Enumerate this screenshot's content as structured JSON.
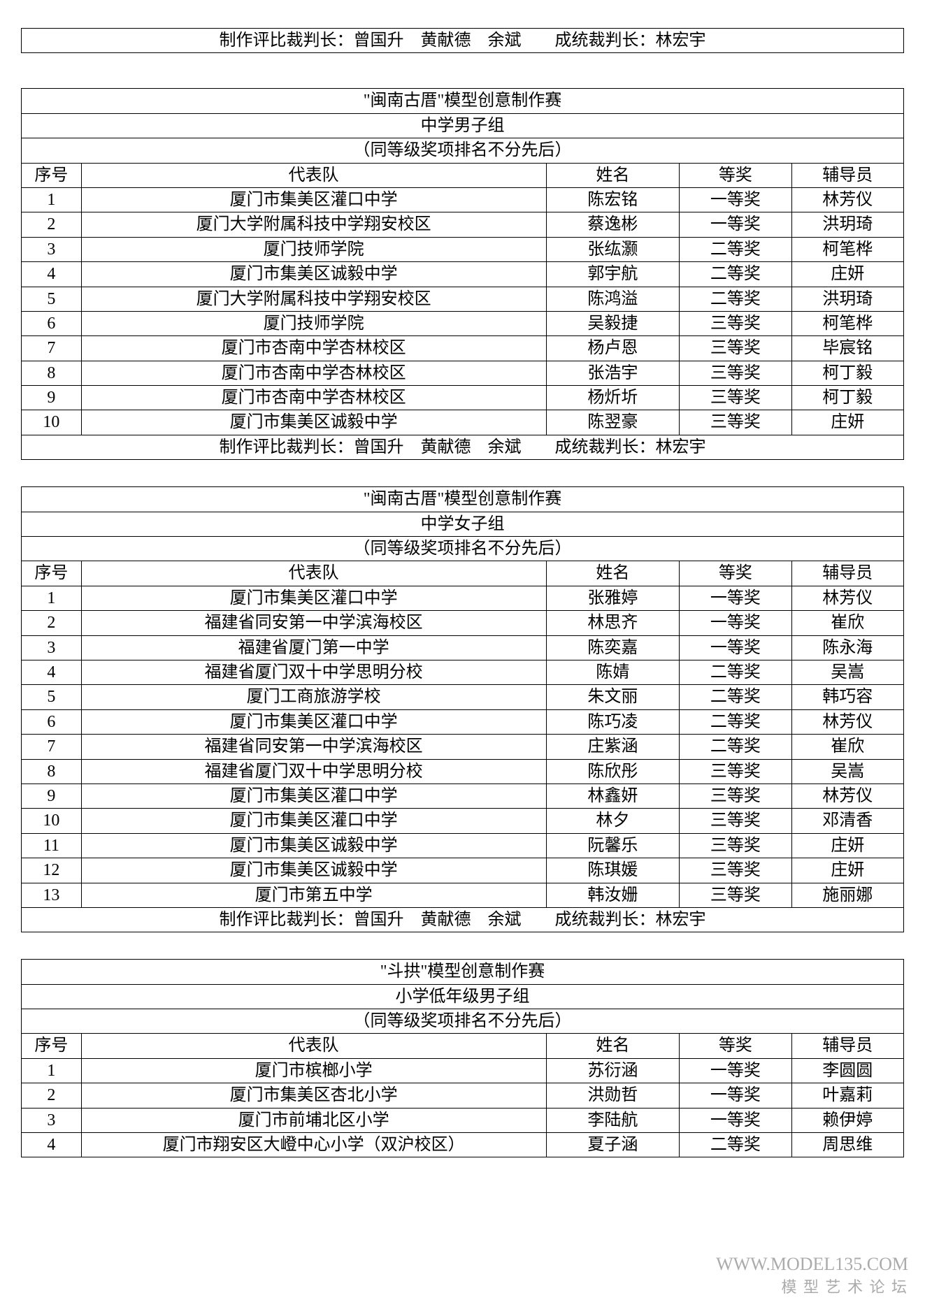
{
  "judges_line": "制作评比裁判长：曾国升 黄献德 余斌  成统裁判长：林宏宇",
  "headers": {
    "seq": "序号",
    "team": "代表队",
    "name": "姓名",
    "award": "等奖",
    "tutor": "辅导员"
  },
  "note": "（同等级奖项排名不分先后）",
  "section1": {
    "title": "\"闽南古厝\"模型创意制作赛",
    "group": "中学男子组",
    "rows": [
      {
        "seq": "1",
        "team": "厦门市集美区灌口中学",
        "name": "陈宏铭",
        "award": "一等奖",
        "tutor": "林芳仪"
      },
      {
        "seq": "2",
        "team": "厦门大学附属科技中学翔安校区",
        "name": "蔡逸彬",
        "award": "一等奖",
        "tutor": "洪玥琦"
      },
      {
        "seq": "3",
        "team": "厦门技师学院",
        "name": "张纮灏",
        "award": "二等奖",
        "tutor": "柯笔桦"
      },
      {
        "seq": "4",
        "team": "厦门市集美区诚毅中学",
        "name": "郭宇航",
        "award": "二等奖",
        "tutor": "庄妍"
      },
      {
        "seq": "5",
        "team": "厦门大学附属科技中学翔安校区",
        "name": "陈鸿溢",
        "award": "二等奖",
        "tutor": "洪玥琦"
      },
      {
        "seq": "6",
        "team": "厦门技师学院",
        "name": "吴毅捷",
        "award": "三等奖",
        "tutor": "柯笔桦"
      },
      {
        "seq": "7",
        "team": "厦门市杏南中学杏林校区",
        "name": "杨卢恩",
        "award": "三等奖",
        "tutor": "毕宸铭"
      },
      {
        "seq": "8",
        "team": "厦门市杏南中学杏林校区",
        "name": "张浩宇",
        "award": "三等奖",
        "tutor": "柯丁毅"
      },
      {
        "seq": "9",
        "team": "厦门市杏南中学杏林校区",
        "name": "杨炘圻",
        "award": "三等奖",
        "tutor": "柯丁毅"
      },
      {
        "seq": "10",
        "team": "厦门市集美区诚毅中学",
        "name": "陈翌豪",
        "award": "三等奖",
        "tutor": "庄妍"
      }
    ]
  },
  "section2": {
    "title": "\"闽南古厝\"模型创意制作赛",
    "group": "中学女子组",
    "rows": [
      {
        "seq": "1",
        "team": "厦门市集美区灌口中学",
        "name": "张雅婷",
        "award": "一等奖",
        "tutor": "林芳仪"
      },
      {
        "seq": "2",
        "team": "福建省同安第一中学滨海校区",
        "name": "林思齐",
        "award": "一等奖",
        "tutor": "崔欣"
      },
      {
        "seq": "3",
        "team": "福建省厦门第一中学",
        "name": "陈奕嘉",
        "award": "一等奖",
        "tutor": "陈永海"
      },
      {
        "seq": "4",
        "team": "福建省厦门双十中学思明分校",
        "name": "陈婧",
        "award": "二等奖",
        "tutor": "吴嵩"
      },
      {
        "seq": "5",
        "team": "厦门工商旅游学校",
        "name": "朱文丽",
        "award": "二等奖",
        "tutor": "韩巧容"
      },
      {
        "seq": "6",
        "team": "厦门市集美区灌口中学",
        "name": "陈巧凌",
        "award": "二等奖",
        "tutor": "林芳仪"
      },
      {
        "seq": "7",
        "team": "福建省同安第一中学滨海校区",
        "name": "庄紫涵",
        "award": "二等奖",
        "tutor": "崔欣"
      },
      {
        "seq": "8",
        "team": "福建省厦门双十中学思明分校",
        "name": "陈欣彤",
        "award": "三等奖",
        "tutor": "吴嵩"
      },
      {
        "seq": "9",
        "team": "厦门市集美区灌口中学",
        "name": "林鑫妍",
        "award": "三等奖",
        "tutor": "林芳仪"
      },
      {
        "seq": "10",
        "team": "厦门市集美区灌口中学",
        "name": "林夕",
        "award": "三等奖",
        "tutor": "邓清香"
      },
      {
        "seq": "11",
        "team": "厦门市集美区诚毅中学",
        "name": "阮馨乐",
        "award": "三等奖",
        "tutor": "庄妍"
      },
      {
        "seq": "12",
        "team": "厦门市集美区诚毅中学",
        "name": "陈琪媛",
        "award": "三等奖",
        "tutor": "庄妍"
      },
      {
        "seq": "13",
        "team": "厦门市第五中学",
        "name": "韩汝姗",
        "award": "三等奖",
        "tutor": "施丽娜"
      }
    ]
  },
  "section3": {
    "title": "\"斗拱\"模型创意制作赛",
    "group": "小学低年级男子组",
    "rows": [
      {
        "seq": "1",
        "team": "厦门市槟榔小学",
        "name": "苏衍涵",
        "award": "一等奖",
        "tutor": "李圆圆"
      },
      {
        "seq": "2",
        "team": "厦门市集美区杏北小学",
        "name": "洪勋哲",
        "award": "一等奖",
        "tutor": "叶嘉莉"
      },
      {
        "seq": "3",
        "team": "厦门市前埔北区小学",
        "name": "李陆航",
        "award": "一等奖",
        "tutor": "赖伊婷"
      },
      {
        "seq": "4",
        "team": "厦门市翔安区大嶝中心小学（双沪校区）",
        "name": "夏子涵",
        "award": "二等奖",
        "tutor": "周思维"
      }
    ]
  },
  "watermark": {
    "line1": "Www.Model135.Com",
    "line2": "模 型 艺 术 论 坛"
  }
}
